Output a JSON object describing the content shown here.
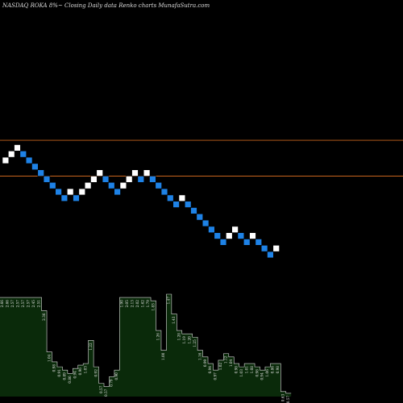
{
  "title": "NASDAQ ROKA 8%~  Closing Daily data  Renko  charts MunafaSutra.com",
  "chart_data": {
    "type": "renko",
    "title": "NASDAQ ROKA 8%~  Closing Daily data  Renko  charts MunafaSutra.com",
    "xlabel": "",
    "ylabel": "",
    "reference_lines": [
      {
        "level": 6.4,
        "color": "#c8641e"
      },
      {
        "level": -5.0,
        "color": "#c8641e"
      }
    ],
    "bricks": [
      {
        "i": 0,
        "level": 0,
        "dir": "up"
      },
      {
        "i": 1,
        "level": 2,
        "dir": "up"
      },
      {
        "i": 2,
        "level": 4,
        "dir": "up"
      },
      {
        "i": 3,
        "level": 2,
        "dir": "down"
      },
      {
        "i": 4,
        "level": 0,
        "dir": "down"
      },
      {
        "i": 5,
        "level": -2,
        "dir": "down"
      },
      {
        "i": 6,
        "level": -4,
        "dir": "down"
      },
      {
        "i": 7,
        "level": -6,
        "dir": "down"
      },
      {
        "i": 8,
        "level": -8,
        "dir": "down"
      },
      {
        "i": 9,
        "level": -10,
        "dir": "down"
      },
      {
        "i": 10,
        "level": -12,
        "dir": "down"
      },
      {
        "i": 11,
        "level": -10,
        "dir": "up"
      },
      {
        "i": 12,
        "level": -12,
        "dir": "down"
      },
      {
        "i": 13,
        "level": -10,
        "dir": "up"
      },
      {
        "i": 14,
        "level": -8,
        "dir": "up"
      },
      {
        "i": 15,
        "level": -6,
        "dir": "up"
      },
      {
        "i": 16,
        "level": -4,
        "dir": "up"
      },
      {
        "i": 17,
        "level": -6,
        "dir": "down"
      },
      {
        "i": 18,
        "level": -8,
        "dir": "down"
      },
      {
        "i": 19,
        "level": -10,
        "dir": "down"
      },
      {
        "i": 20,
        "level": -8,
        "dir": "up"
      },
      {
        "i": 21,
        "level": -6,
        "dir": "up"
      },
      {
        "i": 22,
        "level": -4,
        "dir": "up"
      },
      {
        "i": 23,
        "level": -6,
        "dir": "down"
      },
      {
        "i": 24,
        "level": -4,
        "dir": "up"
      },
      {
        "i": 25,
        "level": -6,
        "dir": "down"
      },
      {
        "i": 26,
        "level": -8,
        "dir": "down"
      },
      {
        "i": 27,
        "level": -10,
        "dir": "down"
      },
      {
        "i": 28,
        "level": -12,
        "dir": "down"
      },
      {
        "i": 29,
        "level": -14,
        "dir": "down"
      },
      {
        "i": 30,
        "level": -12,
        "dir": "up"
      },
      {
        "i": 31,
        "level": -14,
        "dir": "down"
      },
      {
        "i": 32,
        "level": -16,
        "dir": "down"
      },
      {
        "i": 33,
        "level": -18,
        "dir": "down"
      },
      {
        "i": 34,
        "level": -20,
        "dir": "down"
      },
      {
        "i": 35,
        "level": -22,
        "dir": "down"
      },
      {
        "i": 36,
        "level": -24,
        "dir": "down"
      },
      {
        "i": 37,
        "level": -26,
        "dir": "down"
      },
      {
        "i": 38,
        "level": -24,
        "dir": "up"
      },
      {
        "i": 39,
        "level": -22,
        "dir": "up"
      },
      {
        "i": 40,
        "level": -24,
        "dir": "down"
      },
      {
        "i": 41,
        "level": -26,
        "dir": "down"
      },
      {
        "i": 42,
        "level": -24,
        "dir": "up"
      },
      {
        "i": 43,
        "level": -26,
        "dir": "down"
      },
      {
        "i": 44,
        "level": -28,
        "dir": "down"
      },
      {
        "i": 45,
        "level": -30,
        "dir": "down"
      },
      {
        "i": 46,
        "level": -28,
        "dir": "up"
      }
    ],
    "volume_bars": [
      {
        "v": 3.0,
        "label": "2.66"
      },
      {
        "v": 3.0,
        "label": "2.66"
      },
      {
        "v": 3.0,
        "label": "2.57"
      },
      {
        "v": 3.0,
        "label": "2.57"
      },
      {
        "v": 3.0,
        "label": "2.57"
      },
      {
        "v": 3.0,
        "label": "2.57"
      },
      {
        "v": 3.0,
        "label": "2.45"
      },
      {
        "v": 3.0,
        "label": "2.51"
      },
      {
        "v": 2.6,
        "label": "2.36"
      },
      {
        "v": 1.35,
        "label": "1.04"
      },
      {
        "v": 1.05,
        "label": "0.98"
      },
      {
        "v": 0.9,
        "label": "0.91"
      },
      {
        "v": 0.8,
        "label": "0.89"
      },
      {
        "v": 0.7,
        "label": "0.86"
      },
      {
        "v": 0.85,
        "label": "0.94"
      },
      {
        "v": 0.95,
        "label": "0.96"
      },
      {
        "v": 1.0,
        "label": "1.03"
      },
      {
        "v": 1.7,
        "label": "1.22"
      },
      {
        "v": 0.9,
        "label": "0.92"
      },
      {
        "v": 0.4,
        "label": "0.57"
      },
      {
        "v": 0.3,
        "label": "0.57"
      },
      {
        "v": 0.6,
        "label": "0.79"
      },
      {
        "v": 0.8,
        "label": "0.90"
      },
      {
        "v": 3.0,
        "label": "1.90"
      },
      {
        "v": 3.0,
        "label": "2.05"
      },
      {
        "v": 3.0,
        "label": "2.13"
      },
      {
        "v": 3.0,
        "label": "2.02"
      },
      {
        "v": 3.0,
        "label": "1.62"
      },
      {
        "v": 3.0,
        "label": "1.79"
      },
      {
        "v": 2.9,
        "label": "1.83"
      },
      {
        "v": 2.0,
        "label": "1.26"
      },
      {
        "v": 1.4,
        "label": "1.00"
      },
      {
        "v": 3.1,
        "label": "1.47"
      },
      {
        "v": 2.5,
        "label": "1.43"
      },
      {
        "v": 2.0,
        "label": "1.28"
      },
      {
        "v": 1.9,
        "label": "1.19"
      },
      {
        "v": 1.9,
        "label": "1.20"
      },
      {
        "v": 1.8,
        "label": "1.25"
      },
      {
        "v": 1.4,
        "label": "1.16"
      },
      {
        "v": 1.2,
        "label": "0.99"
      },
      {
        "v": 1.0,
        "label": "0.94"
      },
      {
        "v": 0.8,
        "label": "0.97"
      },
      {
        "v": 1.1,
        "label": "1.02"
      },
      {
        "v": 1.3,
        "label": "1.12"
      },
      {
        "v": 1.2,
        "label": "1.04"
      },
      {
        "v": 1.0,
        "label": "0.98"
      },
      {
        "v": 0.9,
        "label": "1.03"
      },
      {
        "v": 1.0,
        "label": "1.01"
      },
      {
        "v": 1.0,
        "label": "1.08"
      },
      {
        "v": 0.9,
        "label": "0.98"
      },
      {
        "v": 0.8,
        "label": "0.94"
      },
      {
        "v": 0.9,
        "label": "1.06"
      },
      {
        "v": 1.0,
        "label": "0.86"
      },
      {
        "v": 1.0,
        "label": "0.98"
      },
      {
        "v": 0.15,
        "label": "0.63"
      },
      {
        "v": 0.1,
        "label": "0.57"
      }
    ],
    "colors": {
      "up": "#ffffff",
      "down": "#1e82e6",
      "brick_border": "#000000",
      "reference_line": "#c8641e",
      "volume_fill": "#0a2a0a",
      "volume_stroke": "#dcdcdc",
      "background": "#000000"
    },
    "grid": false,
    "legend": "none"
  }
}
